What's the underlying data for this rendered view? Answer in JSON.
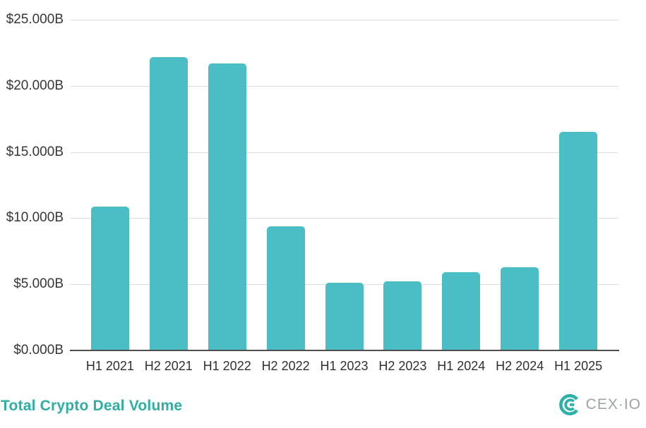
{
  "page": {
    "background_color": "#ffffff"
  },
  "title": {
    "text": "Total Crypto Deal Volume",
    "color": "#2faea4"
  },
  "logo": {
    "text": "CEX·IO",
    "text_color": "#9da2a6",
    "icon_color": "#2bb1a9",
    "icon": "cexio-logo-icon"
  },
  "chart_data": {
    "type": "bar",
    "title": "Total Crypto Deal Volume",
    "categories": [
      "H1 2021",
      "H2 2021",
      "H1 2022",
      "H2 2022",
      "H1 2023",
      "H2 2023",
      "H1 2024",
      "H2 2024",
      "H1 2025"
    ],
    "values": [
      10.9,
      22.2,
      21.7,
      9.4,
      5.1,
      5.2,
      5.9,
      6.3,
      16.5
    ],
    "unit": "$B",
    "xlabel": "",
    "ylabel": "",
    "ylim": [
      0,
      25
    ],
    "yticks": [
      {
        "value": 0,
        "label": "$0.000B"
      },
      {
        "value": 5,
        "label": "$5.000B"
      },
      {
        "value": 10,
        "label": "$10.000B"
      },
      {
        "value": 15,
        "label": "$15.000B"
      },
      {
        "value": 20,
        "label": "$20.000B"
      },
      {
        "value": 25,
        "label": "$25.000B"
      }
    ],
    "grid": true,
    "legend": false,
    "bar_color": "#4abdc5",
    "gridline_color": "#dbdbdb",
    "axis_line_color": "#4d4d4d"
  }
}
